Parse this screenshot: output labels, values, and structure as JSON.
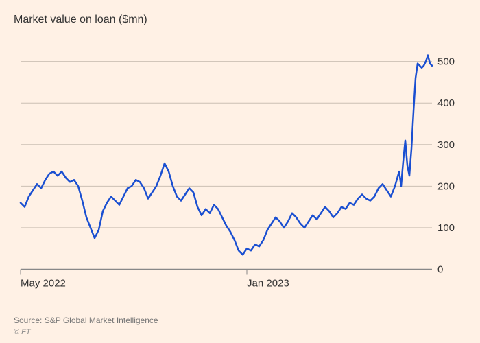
{
  "subtitle": "Market value on loan ($mn)",
  "source": "Source: S&P Global Market Intelligence",
  "copyright": "© FT",
  "chart": {
    "type": "line",
    "background_color": "#fff1e5",
    "line_color": "#1a4fd1",
    "line_width": 2.5,
    "grid_color": "#ccc0b4",
    "baseline_color": "#888888",
    "ylim": [
      0,
      520
    ],
    "ytick_step": 100,
    "ytick_labels": [
      "0",
      "100",
      "200",
      "300",
      "400",
      "500"
    ],
    "xticks": [
      {
        "pos": 0.0,
        "label": "May 2022"
      },
      {
        "pos": 0.55,
        "label": "Jan 2023"
      }
    ],
    "label_fontsize": 15,
    "label_color": "#333333",
    "series": [
      {
        "x": 0.0,
        "y": 160
      },
      {
        "x": 0.01,
        "y": 150
      },
      {
        "x": 0.02,
        "y": 175
      },
      {
        "x": 0.03,
        "y": 190
      },
      {
        "x": 0.04,
        "y": 205
      },
      {
        "x": 0.05,
        "y": 195
      },
      {
        "x": 0.06,
        "y": 215
      },
      {
        "x": 0.07,
        "y": 230
      },
      {
        "x": 0.08,
        "y": 235
      },
      {
        "x": 0.09,
        "y": 225
      },
      {
        "x": 0.1,
        "y": 235
      },
      {
        "x": 0.11,
        "y": 220
      },
      {
        "x": 0.12,
        "y": 210
      },
      {
        "x": 0.13,
        "y": 215
      },
      {
        "x": 0.14,
        "y": 200
      },
      {
        "x": 0.15,
        "y": 165
      },
      {
        "x": 0.16,
        "y": 125
      },
      {
        "x": 0.17,
        "y": 100
      },
      {
        "x": 0.18,
        "y": 75
      },
      {
        "x": 0.19,
        "y": 95
      },
      {
        "x": 0.2,
        "y": 140
      },
      {
        "x": 0.21,
        "y": 160
      },
      {
        "x": 0.22,
        "y": 175
      },
      {
        "x": 0.23,
        "y": 165
      },
      {
        "x": 0.24,
        "y": 155
      },
      {
        "x": 0.25,
        "y": 175
      },
      {
        "x": 0.26,
        "y": 195
      },
      {
        "x": 0.27,
        "y": 200
      },
      {
        "x": 0.28,
        "y": 215
      },
      {
        "x": 0.29,
        "y": 210
      },
      {
        "x": 0.3,
        "y": 195
      },
      {
        "x": 0.31,
        "y": 170
      },
      {
        "x": 0.32,
        "y": 185
      },
      {
        "x": 0.33,
        "y": 200
      },
      {
        "x": 0.34,
        "y": 225
      },
      {
        "x": 0.35,
        "y": 255
      },
      {
        "x": 0.36,
        "y": 235
      },
      {
        "x": 0.37,
        "y": 200
      },
      {
        "x": 0.38,
        "y": 175
      },
      {
        "x": 0.39,
        "y": 165
      },
      {
        "x": 0.4,
        "y": 180
      },
      {
        "x": 0.41,
        "y": 195
      },
      {
        "x": 0.42,
        "y": 185
      },
      {
        "x": 0.43,
        "y": 150
      },
      {
        "x": 0.44,
        "y": 130
      },
      {
        "x": 0.45,
        "y": 145
      },
      {
        "x": 0.46,
        "y": 135
      },
      {
        "x": 0.47,
        "y": 155
      },
      {
        "x": 0.48,
        "y": 145
      },
      {
        "x": 0.49,
        "y": 125
      },
      {
        "x": 0.5,
        "y": 105
      },
      {
        "x": 0.51,
        "y": 90
      },
      {
        "x": 0.52,
        "y": 70
      },
      {
        "x": 0.53,
        "y": 45
      },
      {
        "x": 0.54,
        "y": 35
      },
      {
        "x": 0.55,
        "y": 50
      },
      {
        "x": 0.56,
        "y": 45
      },
      {
        "x": 0.57,
        "y": 60
      },
      {
        "x": 0.58,
        "y": 55
      },
      {
        "x": 0.59,
        "y": 70
      },
      {
        "x": 0.6,
        "y": 95
      },
      {
        "x": 0.61,
        "y": 110
      },
      {
        "x": 0.62,
        "y": 125
      },
      {
        "x": 0.63,
        "y": 115
      },
      {
        "x": 0.64,
        "y": 100
      },
      {
        "x": 0.65,
        "y": 115
      },
      {
        "x": 0.66,
        "y": 135
      },
      {
        "x": 0.67,
        "y": 125
      },
      {
        "x": 0.68,
        "y": 110
      },
      {
        "x": 0.69,
        "y": 100
      },
      {
        "x": 0.7,
        "y": 115
      },
      {
        "x": 0.71,
        "y": 130
      },
      {
        "x": 0.72,
        "y": 120
      },
      {
        "x": 0.73,
        "y": 135
      },
      {
        "x": 0.74,
        "y": 150
      },
      {
        "x": 0.75,
        "y": 140
      },
      {
        "x": 0.76,
        "y": 125
      },
      {
        "x": 0.77,
        "y": 135
      },
      {
        "x": 0.78,
        "y": 150
      },
      {
        "x": 0.79,
        "y": 145
      },
      {
        "x": 0.8,
        "y": 160
      },
      {
        "x": 0.81,
        "y": 155
      },
      {
        "x": 0.82,
        "y": 170
      },
      {
        "x": 0.83,
        "y": 180
      },
      {
        "x": 0.84,
        "y": 170
      },
      {
        "x": 0.85,
        "y": 165
      },
      {
        "x": 0.86,
        "y": 175
      },
      {
        "x": 0.87,
        "y": 195
      },
      {
        "x": 0.88,
        "y": 205
      },
      {
        "x": 0.89,
        "y": 190
      },
      {
        "x": 0.9,
        "y": 175
      },
      {
        "x": 0.91,
        "y": 200
      },
      {
        "x": 0.92,
        "y": 235
      },
      {
        "x": 0.925,
        "y": 200
      },
      {
        "x": 0.93,
        "y": 260
      },
      {
        "x": 0.935,
        "y": 310
      },
      {
        "x": 0.94,
        "y": 250
      },
      {
        "x": 0.945,
        "y": 225
      },
      {
        "x": 0.95,
        "y": 290
      },
      {
        "x": 0.955,
        "y": 380
      },
      {
        "x": 0.96,
        "y": 460
      },
      {
        "x": 0.965,
        "y": 495
      },
      {
        "x": 0.97,
        "y": 490
      },
      {
        "x": 0.975,
        "y": 485
      },
      {
        "x": 0.98,
        "y": 490
      },
      {
        "x": 0.985,
        "y": 500
      },
      {
        "x": 0.99,
        "y": 515
      },
      {
        "x": 0.995,
        "y": 495
      },
      {
        "x": 1.0,
        "y": 490
      }
    ]
  }
}
